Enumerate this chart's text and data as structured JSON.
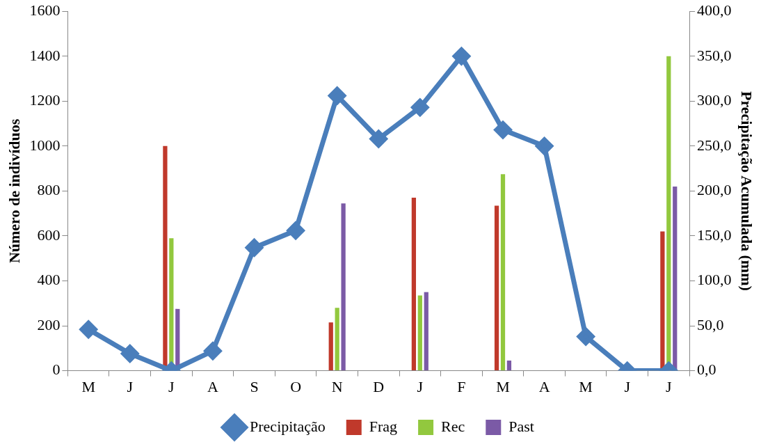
{
  "chart_data": {
    "type": "bar",
    "categories": [
      "M",
      "J",
      "J",
      "A",
      "S",
      "O",
      "N",
      "D",
      "J",
      "F",
      "M",
      "A",
      "M",
      "J",
      "J"
    ],
    "ylabel": "Número de indivíduos",
    "y2label": "Precipitação Acumulada (mm)",
    "ylim": [
      0,
      1600
    ],
    "yticks": [
      0,
      200,
      400,
      600,
      800,
      1000,
      1200,
      1400,
      1600
    ],
    "y2lim": [
      0,
      400
    ],
    "y2ticks": [
      {
        "value": 0,
        "label": "0,0"
      },
      {
        "value": 50,
        "label": "50,0"
      },
      {
        "value": 100,
        "label": "100,0"
      },
      {
        "value": 150,
        "label": "150,0"
      },
      {
        "value": 200,
        "label": "200,0"
      },
      {
        "value": 250,
        "label": "250,0"
      },
      {
        "value": 300,
        "label": "300,0"
      },
      {
        "value": 350,
        "label": "350,0"
      },
      {
        "value": 400,
        "label": "400,0"
      }
    ],
    "grid": false,
    "legend": "bottom",
    "marker": "diamond",
    "series": [
      {
        "name": "Frag",
        "color": "#c0392b",
        "values": [
          null,
          null,
          1000,
          null,
          null,
          null,
          215,
          null,
          770,
          null,
          735,
          null,
          null,
          null,
          620
        ]
      },
      {
        "name": "Rec",
        "color": "#92c83e",
        "values": [
          null,
          null,
          590,
          null,
          null,
          null,
          280,
          null,
          335,
          null,
          875,
          null,
          null,
          null,
          1400
        ]
      },
      {
        "name": "Past",
        "color": "#7b5aa6",
        "values": [
          null,
          null,
          275,
          null,
          null,
          null,
          745,
          null,
          350,
          null,
          45,
          null,
          null,
          null,
          820
        ]
      },
      {
        "name": "Precipitação",
        "type": "line",
        "axis": "y2",
        "color": "#4a7ebb",
        "values": [
          46,
          19,
          0,
          22,
          137,
          156,
          306,
          258,
          293,
          350,
          268,
          250,
          38,
          0,
          0
        ]
      }
    ]
  }
}
